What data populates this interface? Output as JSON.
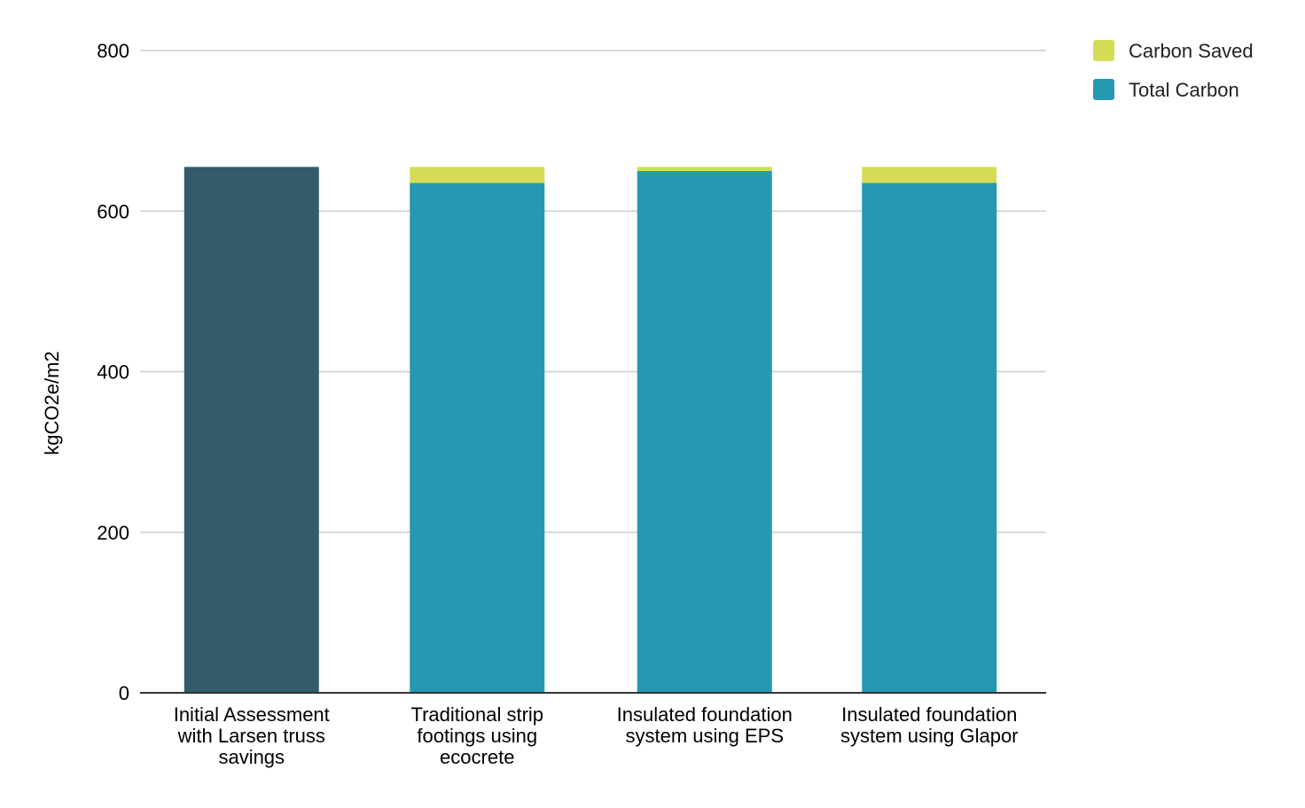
{
  "chart_data": {
    "type": "bar",
    "stacked": true,
    "title": "",
    "xlabel": "",
    "ylabel": "kgCO2e/m2",
    "ylim": [
      0,
      800
    ],
    "yticks": [
      0,
      200,
      400,
      600,
      800
    ],
    "grid": true,
    "legend_position": "top-right",
    "categories": [
      [
        "Initial Assessment",
        "with Larsen truss",
        "savings"
      ],
      [
        "Traditional strip",
        "footings using",
        "ecocrete"
      ],
      [
        "Insulated foundation",
        "system using EPS"
      ],
      [
        "Insulated foundation",
        "system using Glapor"
      ]
    ],
    "base_colors": [
      "#325b6b",
      "#2598b2",
      "#2598b2",
      "#2598b2"
    ],
    "series": [
      {
        "name": "Total Carbon",
        "color": "#2598b2",
        "values": [
          655,
          635,
          650,
          635
        ]
      },
      {
        "name": "Carbon Saved",
        "color": "#d6dc55",
        "values": [
          0,
          20,
          5,
          20
        ]
      }
    ],
    "legend": [
      {
        "name": "Carbon Saved",
        "color": "#d6dc55"
      },
      {
        "name": "Total Carbon",
        "color": "#2598b2"
      }
    ]
  }
}
